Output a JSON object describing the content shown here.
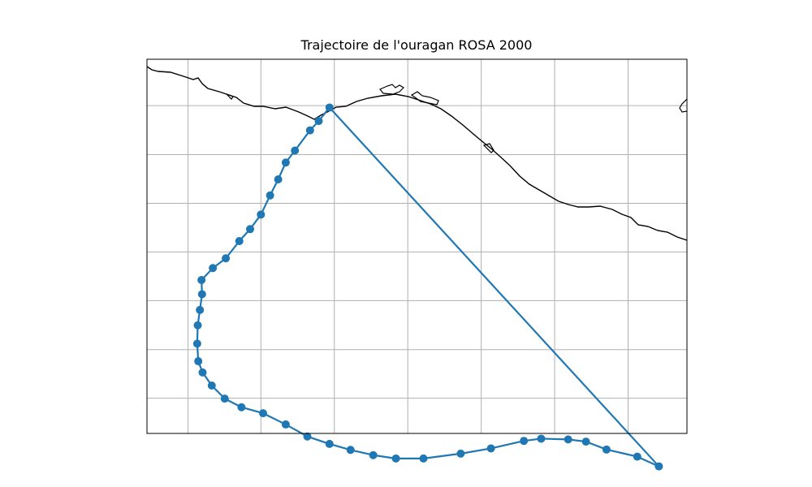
{
  "title": "Trajectoire de l'ouragan ROSA 2000",
  "colors": {
    "track": "#1f77b4",
    "coastline": "#000000",
    "grid": "#b0b0b0"
  },
  "chart_data": {
    "type": "map-track",
    "title": "Trajectoire de l'ouragan ROSA 2000",
    "grid": true,
    "x_range": [
      0,
      1000
    ],
    "y_range": [
      0,
      1000
    ],
    "gridlines_x": [
      76,
      211,
      347,
      483,
      619,
      755,
      891
    ],
    "gridlines_y": [
      124,
      255,
      385,
      515,
      645,
      776,
      906
    ],
    "track_points": [
      [
        338,
        129
      ],
      [
        318,
        165
      ],
      [
        302,
        190
      ],
      [
        274,
        244
      ],
      [
        257,
        276
      ],
      [
        243,
        321
      ],
      [
        228,
        364
      ],
      [
        211,
        415
      ],
      [
        191,
        454
      ],
      [
        171,
        486
      ],
      [
        146,
        532
      ],
      [
        122,
        558
      ],
      [
        101,
        590
      ],
      [
        102,
        628
      ],
      [
        98,
        670
      ],
      [
        94,
        711
      ],
      [
        93,
        760
      ],
      [
        95,
        807
      ],
      [
        103,
        837
      ],
      [
        120,
        872
      ],
      [
        144,
        907
      ],
      [
        175,
        930
      ],
      [
        215,
        946
      ],
      [
        257,
        976
      ],
      [
        297,
        1008
      ],
      [
        338,
        1028
      ],
      [
        377,
        1044
      ],
      [
        419,
        1058
      ],
      [
        461,
        1067
      ],
      [
        512,
        1067
      ],
      [
        581,
        1054
      ],
      [
        637,
        1040
      ],
      [
        698,
        1020
      ],
      [
        730,
        1014
      ],
      [
        780,
        1016
      ],
      [
        813,
        1022
      ],
      [
        851,
        1043
      ],
      [
        908,
        1062
      ],
      [
        948,
        1088
      ]
    ],
    "return_segment": [
      [
        948,
        1088
      ],
      [
        338,
        129
      ]
    ]
  }
}
